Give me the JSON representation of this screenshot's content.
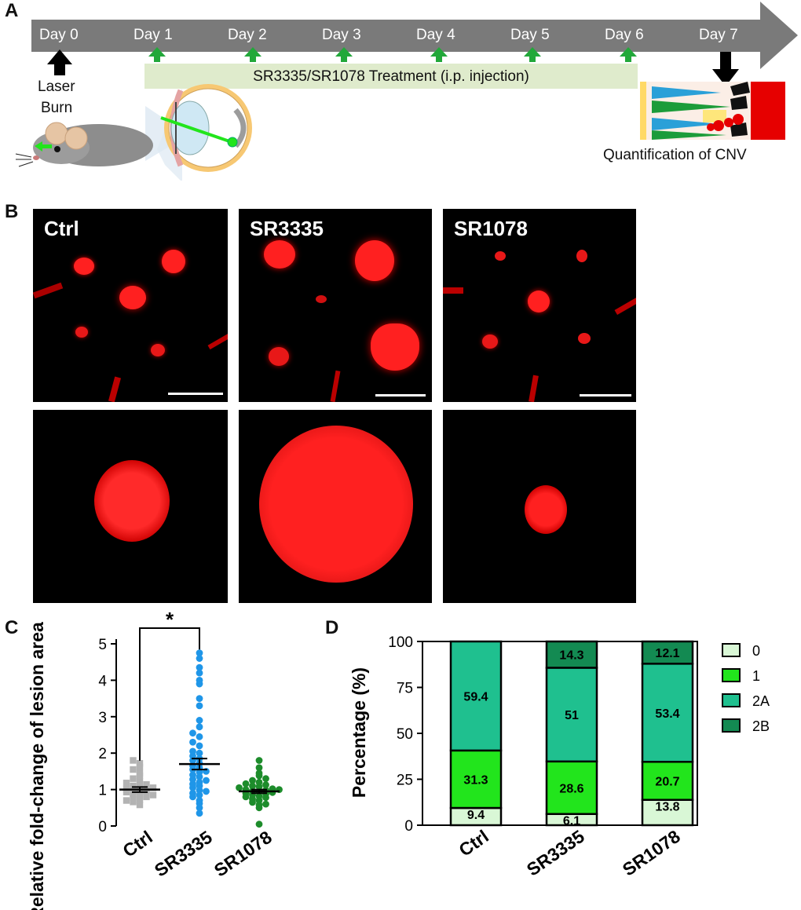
{
  "panels": {
    "a": "A",
    "b": "B",
    "c": "C",
    "d": "D"
  },
  "timeline": {
    "days": [
      "Day 0",
      "Day 1",
      "Day 2",
      "Day 3",
      "Day 4",
      "Day 5",
      "Day 6",
      "Day 7"
    ],
    "laser_label_1": "Laser",
    "laser_label_2": "Burn",
    "treatment_label": "SR3335/SR1078 Treatment (i.p. injection)",
    "quantification_label": "Quantification of CNV",
    "arrow_color": "#7a7a7a",
    "treatment_bar_color": "#dfebcc",
    "injection_arrow_color": "#22a83a"
  },
  "micrographs": {
    "labels": [
      "Ctrl",
      "SR3335",
      "SR1078"
    ],
    "lesion_color": "#ff1a1a"
  },
  "chart_data": [
    {
      "type": "scatter",
      "ylabel": "Relative fold-change of lesion area",
      "categories": [
        "Ctrl",
        "SR3335",
        "SR1078"
      ],
      "ylim": [
        0,
        5
      ],
      "yticks": [
        "0",
        "1",
        "2",
        "3",
        "4",
        "5"
      ],
      "significance": "*",
      "series": [
        {
          "name": "Ctrl",
          "color": "#b3b3b3",
          "marker": "square",
          "mean": 1.0,
          "sem": 0.07,
          "values": [
            0.58,
            0.66,
            0.72,
            0.78,
            0.8,
            0.84,
            0.88,
            0.9,
            0.93,
            0.95,
            0.98,
            1.0,
            1.02,
            1.05,
            1.08,
            1.1,
            1.14,
            1.18,
            1.22,
            1.3,
            1.38,
            1.45,
            1.55,
            1.62,
            1.72,
            1.8,
            0.7,
            0.85
          ]
        },
        {
          "name": "SR3335",
          "color": "#1f96e8",
          "marker": "circle",
          "mean": 1.7,
          "sem": 0.15,
          "values": [
            0.35,
            0.5,
            0.62,
            0.7,
            0.8,
            0.85,
            0.9,
            0.98,
            1.05,
            1.1,
            1.15,
            1.2,
            1.28,
            1.35,
            1.4,
            1.48,
            1.55,
            1.6,
            1.65,
            1.72,
            1.8,
            1.85,
            1.92,
            2.0,
            2.05,
            2.2,
            2.3,
            2.45,
            2.55,
            2.72,
            2.9,
            3.3,
            3.5,
            3.9,
            4.0,
            4.2,
            4.35,
            4.6,
            4.75,
            1.25,
            0.95,
            1.5
          ]
        },
        {
          "name": "SR1078",
          "color": "#1d8c2b",
          "marker": "circle",
          "mean": 0.95,
          "sem": 0.05,
          "values": [
            0.05,
            0.5,
            0.58,
            0.65,
            0.7,
            0.74,
            0.78,
            0.82,
            0.86,
            0.88,
            0.9,
            0.92,
            0.94,
            0.96,
            0.98,
            1.0,
            1.02,
            1.05,
            1.08,
            1.1,
            1.13,
            1.16,
            1.2,
            1.25,
            1.3,
            1.38,
            1.45,
            1.6,
            1.8,
            0.8,
            1.0,
            0.6
          ]
        }
      ]
    },
    {
      "type": "bar",
      "stacked": true,
      "ylabel": "Percentage (%)",
      "categories": [
        "Ctrl",
        "SR3335",
        "SR1078"
      ],
      "ylim": [
        0,
        100
      ],
      "yticks": [
        "0",
        "25",
        "50",
        "75",
        "100"
      ],
      "legend_position": "right",
      "series": [
        {
          "name": "0",
          "color": "#d9f7d6",
          "values": [
            9.4,
            6.1,
            13.8
          ],
          "labels": [
            "9.4",
            "6.1",
            "13.8"
          ]
        },
        {
          "name": "1",
          "color": "#22e51c",
          "values": [
            31.3,
            28.6,
            20.7
          ],
          "labels": [
            "31.3",
            "28.6",
            "20.7"
          ]
        },
        {
          "name": "2A",
          "color": "#1fc08f",
          "values": [
            59.4,
            51,
            53.4
          ],
          "labels": [
            "59.4",
            "51",
            "53.4"
          ]
        },
        {
          "name": "2B",
          "color": "#138a52",
          "values": [
            0,
            14.3,
            12.1
          ],
          "labels": [
            "",
            "14.3",
            "12.1"
          ]
        }
      ]
    }
  ]
}
